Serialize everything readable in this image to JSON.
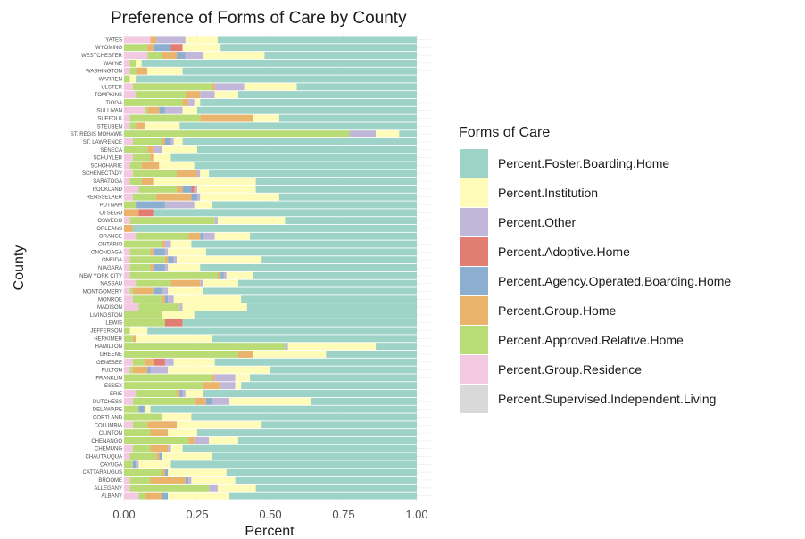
{
  "chart_data": {
    "type": "bar",
    "orientation": "horizontal",
    "stacked": true,
    "title": "Preference of Forms of Care by County",
    "xlabel": "Percent",
    "ylabel": "County",
    "xlim": [
      0,
      1
    ],
    "x_ticks": [
      0,
      0.25,
      0.5,
      0.75,
      1.0
    ],
    "x_tick_labels": [
      "0.00",
      "0.25",
      "0.50",
      "0.75",
      "1.00"
    ],
    "grid": true,
    "legend_title": "Forms of Care",
    "legend_position": "right",
    "series": [
      {
        "name": "Percent.Supervised.Independent.Living",
        "color": "#d9d9d9"
      },
      {
        "name": "Percent.Group.Residence",
        "color": "#f2c9e1"
      },
      {
        "name": "Percent.Approved.Relative.Home",
        "color": "#b9dc76"
      },
      {
        "name": "Percent.Group.Home",
        "color": "#eab46c"
      },
      {
        "name": "Percent.Agency.Operated.Boarding.Home",
        "color": "#8cafd0"
      },
      {
        "name": "Percent.Adoptive.Home",
        "color": "#e17d72"
      },
      {
        "name": "Percent.Other",
        "color": "#c1b7d8"
      },
      {
        "name": "Percent.Institution",
        "color": "#fffbb8"
      },
      {
        "name": "Percent.Foster.Boarding.Home",
        "color": "#9ed3c7"
      }
    ],
    "legend_order": [
      "Percent.Foster.Boarding.Home",
      "Percent.Institution",
      "Percent.Other",
      "Percent.Adoptive.Home",
      "Percent.Agency.Operated.Boarding.Home",
      "Percent.Group.Home",
      "Percent.Approved.Relative.Home",
      "Percent.Group.Residence",
      "Percent.Supervised.Independent.Living"
    ],
    "counties": [
      {
        "name": "YATES",
        "values": [
          0.0,
          0.09,
          0.0,
          0.02,
          0.0,
          0.0,
          0.1,
          0.11,
          0.68
        ]
      },
      {
        "name": "WYOMING",
        "values": [
          0.0,
          0.0,
          0.08,
          0.02,
          0.06,
          0.04,
          0.0,
          0.13,
          0.67
        ]
      },
      {
        "name": "WESTCHESTER",
        "values": [
          0.0,
          0.08,
          0.05,
          0.05,
          0.03,
          0.0,
          0.06,
          0.21,
          0.52
        ]
      },
      {
        "name": "WAYNE",
        "values": [
          0.0,
          0.02,
          0.02,
          0.0,
          0.0,
          0.0,
          0.0,
          0.02,
          0.94
        ]
      },
      {
        "name": "WASHINGTON",
        "values": [
          0.0,
          0.02,
          0.02,
          0.04,
          0.0,
          0.0,
          0.0,
          0.12,
          0.8
        ]
      },
      {
        "name": "WARREN",
        "values": [
          0.0,
          0.0,
          0.02,
          0.0,
          0.0,
          0.0,
          0.0,
          0.02,
          0.96
        ]
      },
      {
        "name": "ULSTER",
        "values": [
          0.0,
          0.03,
          0.27,
          0.01,
          0.0,
          0.0,
          0.1,
          0.18,
          0.41
        ]
      },
      {
        "name": "TOMPKINS",
        "values": [
          0.0,
          0.04,
          0.17,
          0.05,
          0.0,
          0.0,
          0.05,
          0.08,
          0.61
        ]
      },
      {
        "name": "TIOGA",
        "values": [
          0.0,
          0.0,
          0.2,
          0.02,
          0.0,
          0.0,
          0.02,
          0.02,
          0.74
        ]
      },
      {
        "name": "SULLIVAN",
        "values": [
          0.0,
          0.07,
          0.01,
          0.04,
          0.02,
          0.0,
          0.06,
          0.05,
          0.75
        ]
      },
      {
        "name": "SUFFOLK",
        "values": [
          0.0,
          0.02,
          0.24,
          0.18,
          0.0,
          0.0,
          0.0,
          0.09,
          0.47
        ]
      },
      {
        "name": "STEUBEN",
        "values": [
          0.0,
          0.02,
          0.02,
          0.03,
          0.0,
          0.0,
          0.0,
          0.12,
          0.81
        ]
      },
      {
        "name": "ST. REGIS MOHAWK",
        "values": [
          0.0,
          0.0,
          0.77,
          0.0,
          0.0,
          0.0,
          0.09,
          0.08,
          0.06
        ]
      },
      {
        "name": "ST. LAWRENCE",
        "values": [
          0.0,
          0.03,
          0.1,
          0.01,
          0.02,
          0.0,
          0.01,
          0.03,
          0.8
        ]
      },
      {
        "name": "SENECA",
        "values": [
          0.0,
          0.0,
          0.08,
          0.02,
          0.0,
          0.0,
          0.03,
          0.12,
          0.75
        ]
      },
      {
        "name": "SCHUYLER",
        "values": [
          0.0,
          0.03,
          0.06,
          0.01,
          0.0,
          0.0,
          0.0,
          0.06,
          0.84
        ]
      },
      {
        "name": "SCHOHARIE",
        "values": [
          0.0,
          0.02,
          0.04,
          0.06,
          0.0,
          0.0,
          0.0,
          0.12,
          0.76
        ]
      },
      {
        "name": "SCHENECTADY",
        "values": [
          0.0,
          0.03,
          0.15,
          0.07,
          0.0,
          0.0,
          0.01,
          0.03,
          0.71
        ]
      },
      {
        "name": "SARATOGA",
        "values": [
          0.0,
          0.02,
          0.04,
          0.04,
          0.0,
          0.0,
          0.0,
          0.35,
          0.55
        ]
      },
      {
        "name": "ROCKLAND",
        "values": [
          0.0,
          0.05,
          0.13,
          0.02,
          0.03,
          0.01,
          0.01,
          0.2,
          0.55
        ]
      },
      {
        "name": "RENSSELAER",
        "values": [
          0.0,
          0.03,
          0.08,
          0.12,
          0.02,
          0.0,
          0.01,
          0.27,
          0.47
        ]
      },
      {
        "name": "PUTNAM",
        "values": [
          0.0,
          0.0,
          0.04,
          0.0,
          0.1,
          0.0,
          0.1,
          0.06,
          0.7
        ]
      },
      {
        "name": "OTSEGO",
        "values": [
          0.0,
          0.0,
          0.0,
          0.05,
          0.0,
          0.05,
          0.0,
          0.0,
          0.9
        ]
      },
      {
        "name": "OSWEGO",
        "values": [
          0.0,
          0.02,
          0.29,
          0.0,
          0.0,
          0.0,
          0.01,
          0.23,
          0.45
        ]
      },
      {
        "name": "ORLEANS",
        "values": [
          0.0,
          0.0,
          0.0,
          0.03,
          0.0,
          0.0,
          0.0,
          0.0,
          0.97
        ]
      },
      {
        "name": "ORANGE",
        "values": [
          0.0,
          0.04,
          0.18,
          0.04,
          0.01,
          0.0,
          0.04,
          0.12,
          0.57
        ]
      },
      {
        "name": "ONTARIO",
        "values": [
          0.0,
          0.0,
          0.13,
          0.01,
          0.0,
          0.0,
          0.02,
          0.07,
          0.77
        ]
      },
      {
        "name": "ONONDAGA",
        "values": [
          0.0,
          0.02,
          0.07,
          0.01,
          0.04,
          0.0,
          0.01,
          0.13,
          0.72
        ]
      },
      {
        "name": "ONEIDA",
        "values": [
          0.0,
          0.02,
          0.12,
          0.01,
          0.02,
          0.0,
          0.01,
          0.29,
          0.53
        ]
      },
      {
        "name": "NIAGARA",
        "values": [
          0.0,
          0.02,
          0.07,
          0.01,
          0.04,
          0.0,
          0.01,
          0.11,
          0.74
        ]
      },
      {
        "name": "NEW YORK CITY",
        "values": [
          0.0,
          0.02,
          0.3,
          0.01,
          0.01,
          0.0,
          0.01,
          0.09,
          0.56
        ]
      },
      {
        "name": "NASSAU",
        "values": [
          0.0,
          0.04,
          0.12,
          0.1,
          0.0,
          0.0,
          0.01,
          0.12,
          0.61
        ]
      },
      {
        "name": "MONTGOMERY",
        "values": [
          0.0,
          0.02,
          0.01,
          0.07,
          0.03,
          0.0,
          0.02,
          0.12,
          0.73
        ]
      },
      {
        "name": "MONROE",
        "values": [
          0.0,
          0.03,
          0.1,
          0.01,
          0.01,
          0.0,
          0.02,
          0.23,
          0.6
        ]
      },
      {
        "name": "MADISON",
        "values": [
          0.0,
          0.05,
          0.14,
          0.0,
          0.0,
          0.0,
          0.01,
          0.22,
          0.58
        ]
      },
      {
        "name": "LIVINGSTON",
        "values": [
          0.0,
          0.0,
          0.13,
          0.0,
          0.0,
          0.0,
          0.0,
          0.11,
          0.76
        ]
      },
      {
        "name": "LEWIS",
        "values": [
          0.0,
          0.0,
          0.14,
          0.0,
          0.0,
          0.06,
          0.0,
          0.0,
          0.8
        ]
      },
      {
        "name": "JEFFERSON",
        "values": [
          0.0,
          0.0,
          0.02,
          0.0,
          0.0,
          0.0,
          0.0,
          0.06,
          0.92
        ]
      },
      {
        "name": "HERKIMER",
        "values": [
          0.0,
          0.0,
          0.03,
          0.01,
          0.0,
          0.0,
          0.0,
          0.26,
          0.7
        ]
      },
      {
        "name": "HAMILTON",
        "values": [
          0.0,
          0.0,
          0.55,
          0.0,
          0.0,
          0.0,
          0.01,
          0.3,
          0.14
        ]
      },
      {
        "name": "GREENE",
        "values": [
          0.0,
          0.0,
          0.39,
          0.05,
          0.0,
          0.0,
          0.0,
          0.25,
          0.31
        ]
      },
      {
        "name": "GENESEE",
        "values": [
          0.0,
          0.03,
          0.04,
          0.03,
          0.0,
          0.04,
          0.03,
          0.14,
          0.69
        ]
      },
      {
        "name": "FULTON",
        "values": [
          0.0,
          0.02,
          0.01,
          0.05,
          0.01,
          0.0,
          0.06,
          0.35,
          0.5
        ]
      },
      {
        "name": "FRANKLIN",
        "values": [
          0.0,
          0.0,
          0.3,
          0.01,
          0.0,
          0.0,
          0.07,
          0.05,
          0.57
        ]
      },
      {
        "name": "ESSEX",
        "values": [
          0.0,
          0.0,
          0.27,
          0.06,
          0.0,
          0.0,
          0.05,
          0.02,
          0.6
        ]
      },
      {
        "name": "ERIE",
        "values": [
          0.0,
          0.04,
          0.14,
          0.01,
          0.01,
          0.0,
          0.01,
          0.06,
          0.73
        ]
      },
      {
        "name": "DUTCHESS",
        "values": [
          0.0,
          0.03,
          0.21,
          0.04,
          0.02,
          0.0,
          0.06,
          0.28,
          0.36
        ]
      },
      {
        "name": "DELAWARE",
        "values": [
          0.0,
          0.0,
          0.05,
          0.0,
          0.02,
          0.0,
          0.0,
          0.02,
          0.91
        ]
      },
      {
        "name": "CORTLAND",
        "values": [
          0.0,
          0.0,
          0.13,
          0.0,
          0.0,
          0.0,
          0.0,
          0.1,
          0.77
        ]
      },
      {
        "name": "COLUMBIA",
        "values": [
          0.0,
          0.03,
          0.05,
          0.1,
          0.0,
          0.0,
          0.0,
          0.29,
          0.53
        ]
      },
      {
        "name": "CLINTON",
        "values": [
          0.0,
          0.0,
          0.09,
          0.06,
          0.0,
          0.0,
          0.0,
          0.1,
          0.75
        ]
      },
      {
        "name": "CHENANGO",
        "values": [
          0.0,
          0.0,
          0.22,
          0.02,
          0.0,
          0.0,
          0.05,
          0.1,
          0.61
        ]
      },
      {
        "name": "CHEMUNG",
        "values": [
          0.0,
          0.03,
          0.06,
          0.06,
          0.0,
          0.0,
          0.01,
          0.04,
          0.8
        ]
      },
      {
        "name": "CHAUTAUQUA",
        "values": [
          0.0,
          0.02,
          0.09,
          0.01,
          0.01,
          0.0,
          0.0,
          0.17,
          0.7
        ]
      },
      {
        "name": "CAYUGA",
        "values": [
          0.0,
          0.0,
          0.03,
          0.0,
          0.01,
          0.0,
          0.01,
          0.11,
          0.84
        ]
      },
      {
        "name": "CATTARAUGUS",
        "values": [
          0.0,
          0.0,
          0.13,
          0.01,
          0.01,
          0.0,
          0.0,
          0.2,
          0.65
        ]
      },
      {
        "name": "BROOME",
        "values": [
          0.0,
          0.02,
          0.07,
          0.12,
          0.01,
          0.0,
          0.01,
          0.15,
          0.62
        ]
      },
      {
        "name": "ALLEGANY",
        "values": [
          0.0,
          0.02,
          0.27,
          0.0,
          0.0,
          0.0,
          0.03,
          0.13,
          0.55
        ]
      },
      {
        "name": "ALBANY",
        "values": [
          0.0,
          0.05,
          0.02,
          0.06,
          0.02,
          0.0,
          0.0,
          0.21,
          0.64
        ]
      }
    ]
  }
}
